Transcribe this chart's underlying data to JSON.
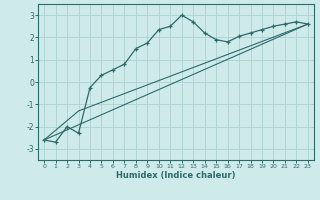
{
  "xlabel": "Humidex (Indice chaleur)",
  "ylabel": "",
  "xlim": [
    -0.5,
    23.5
  ],
  "ylim": [
    -3.5,
    3.5
  ],
  "yticks": [
    -3,
    -2,
    -1,
    0,
    1,
    2,
    3
  ],
  "xticks": [
    0,
    1,
    2,
    3,
    4,
    5,
    6,
    7,
    8,
    9,
    10,
    11,
    12,
    13,
    14,
    15,
    16,
    17,
    18,
    19,
    20,
    21,
    22,
    23
  ],
  "bg_color": "#ceeaea",
  "grid_color": "#b2d4d4",
  "line_color": "#2d6b6b",
  "line1_x": [
    0,
    1,
    2,
    3,
    4,
    5,
    6,
    7,
    8,
    9,
    10,
    11,
    12,
    13,
    14,
    15,
    16,
    17,
    18,
    19,
    20,
    21,
    22,
    23
  ],
  "line1_y": [
    -2.6,
    -2.7,
    -2.0,
    -2.3,
    -0.25,
    0.3,
    0.55,
    0.8,
    1.5,
    1.75,
    2.35,
    2.5,
    3.0,
    2.7,
    2.2,
    1.9,
    1.8,
    2.05,
    2.2,
    2.35,
    2.5,
    2.6,
    2.7,
    2.6
  ],
  "line2_x": [
    0,
    23
  ],
  "line2_y": [
    -2.6,
    2.6
  ],
  "line3_x": [
    0,
    3,
    23
  ],
  "line3_y": [
    -2.6,
    -1.3,
    2.6
  ]
}
